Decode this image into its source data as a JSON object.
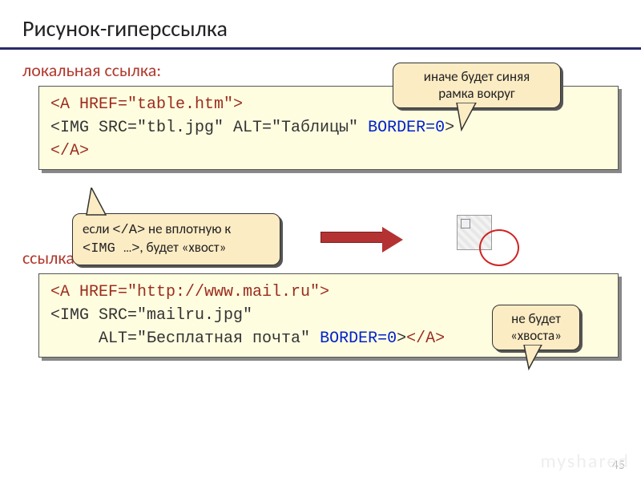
{
  "title": "Рисунок-гиперссылка",
  "hr_color": "#2a2a6a",
  "section1": {
    "heading": "локальная ссылка:",
    "code_html": "<span class=\"kw\">&lt;A HREF=\"table.htm\"&gt;</span>\n&lt;IMG SRC=\"tbl.jpg\" ALT=\"Таблицы\" <span class=\"blue\">BORDER=0</span>&gt;\n<span class=\"kw\">&lt;/A&gt;</span>"
  },
  "callout1": {
    "line1": "иначе будет синяя",
    "line2": "рамка вокруг"
  },
  "callout2": {
    "pre": "если ",
    "mono1": "</A>",
    "mid": " не вплотную к",
    "mono2": "<IMG …>",
    "post": ", будет «хвост»"
  },
  "section2": {
    "heading": "ссылка на другой сервер:",
    "code_html": "<span class=\"kw\">&lt;A HREF=\"http://www.mail.ru\"&gt;</span>\n&lt;IMG SRC=\"mailru.jpg\"\n     ALT=\"Бесплатная почта\" <span class=\"blue\">BORDER=0</span>&gt;<span class=\"kw\">&lt;/A&gt;</span>"
  },
  "callout3": {
    "line1": "не будет",
    "line2": "«хвоста»"
  },
  "page_number": "45",
  "watermark": "myshared"
}
